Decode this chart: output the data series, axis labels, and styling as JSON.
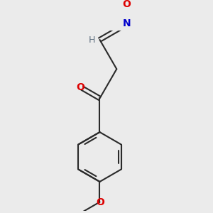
{
  "background_color": "#ebebeb",
  "bond_color": "#2a2a2a",
  "atom_colors": {
    "O": "#dd0000",
    "N": "#0000cc",
    "H": "#607080",
    "C": "#2a2a2a"
  },
  "figsize": [
    3.0,
    3.0
  ],
  "dpi": 100
}
